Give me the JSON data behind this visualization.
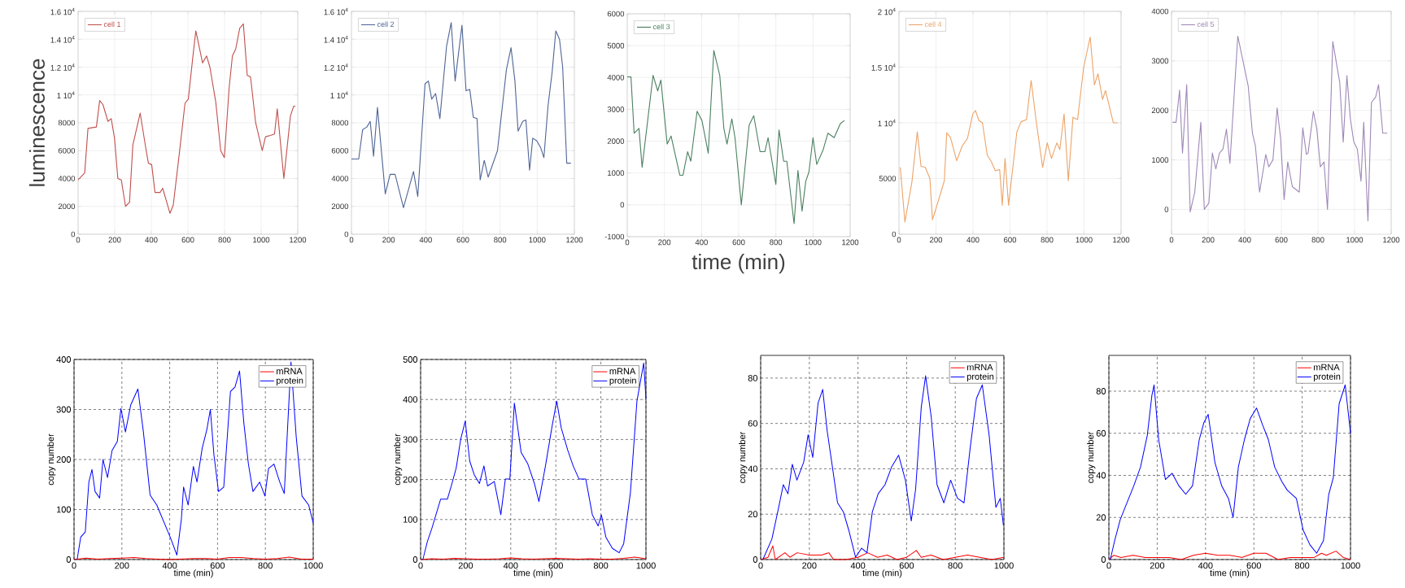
{
  "chart_data": [
    {
      "type": "line",
      "ylabel": "luminescence",
      "xlim": [
        0,
        1200
      ],
      "ylim": [
        0,
        16000
      ],
      "xticks": [
        0,
        200,
        400,
        600,
        800,
        1000,
        1200
      ],
      "yticks": [
        0,
        2000,
        4000,
        6000,
        8000,
        {
          "value": 10000,
          "label": "1 10$^{4}$"
        },
        {
          "value": 12000,
          "label": "1.2 10$^{4}$"
        },
        {
          "value": 14000,
          "label": "1.4 10$^{4}$"
        },
        {
          "value": 16000,
          "label": "1.6 10$^{4}$"
        }
      ],
      "grid": true,
      "legend": "top left",
      "series": [
        {
          "name": "cell 1",
          "color": "#c0504d",
          "x": [
            0,
            36,
            54,
            100,
            118,
            136,
            163,
            181,
            199,
            217,
            236,
            259,
            281,
            299,
            339,
            372,
            384,
            402,
            420,
            448,
            462,
            502,
            520,
            553,
            584,
            602,
            625,
            643,
            680,
            702,
            720,
            752,
            779,
            799,
            825,
            843,
            861,
            883,
            903,
            924,
            942,
            970,
            1006,
            1024,
            1051,
            1073,
            1088,
            1124,
            1160,
            1178,
            1187
          ],
          "values": [
            3900,
            4400,
            7600,
            7700,
            9600,
            9300,
            8100,
            8300,
            6900,
            4000,
            3900,
            2000,
            2300,
            6400,
            8700,
            6000,
            5100,
            5000,
            3000,
            3000,
            3300,
            1500,
            2100,
            5800,
            9400,
            9700,
            12500,
            14600,
            12300,
            12800,
            12000,
            9500,
            6000,
            5500,
            10500,
            12800,
            13300,
            14800,
            15100,
            11400,
            11300,
            8000,
            6000,
            7000,
            7100,
            7200,
            9000,
            4000,
            8500,
            9200,
            9200
          ]
        }
      ]
    },
    {
      "type": "line",
      "xlim": [
        0,
        1200
      ],
      "ylim": [
        0,
        16000
      ],
      "xticks": [
        0,
        200,
        400,
        600,
        800,
        1000,
        1200
      ],
      "yticks": [
        0,
        2000,
        4000,
        6000,
        8000,
        {
          "value": 10000,
          "label": "1 10$^{4}$"
        },
        {
          "value": 12000,
          "label": "1.2 10$^{4}$"
        },
        {
          "value": 14000,
          "label": "1.4 10$^{4}$"
        },
        {
          "value": 16000,
          "label": "1.6 10$^{4}$"
        }
      ],
      "grid": true,
      "legend": "top left",
      "series": [
        {
          "name": "cell 2",
          "color": "#4f6596",
          "x": [
            0,
            39,
            60,
            83,
            101,
            119,
            140,
            182,
            208,
            235,
            280,
            334,
            357,
            396,
            414,
            432,
            453,
            476,
            512,
            537,
            558,
            595,
            617,
            637,
            656,
            676,
            693,
            715,
            736,
            786,
            834,
            859,
            880,
            897,
            922,
            939,
            959,
            976,
            998,
            1019,
            1036,
            1058,
            1080,
            1100,
            1120,
            1137,
            1159,
            1181
          ],
          "values": [
            5400,
            5400,
            7500,
            7700,
            8100,
            5600,
            9100,
            2900,
            4300,
            4300,
            1900,
            4500,
            2700,
            10800,
            11000,
            9700,
            10100,
            8300,
            13500,
            15200,
            11000,
            15000,
            10300,
            10400,
            8400,
            8300,
            3900,
            5300,
            4100,
            6000,
            11800,
            13400,
            11000,
            7400,
            8100,
            8200,
            4600,
            6900,
            6700,
            6200,
            5500,
            9200,
            11600,
            14600,
            14000,
            12000,
            5100,
            5100
          ]
        }
      ]
    },
    {
      "type": "line",
      "xlabel": "time (min)",
      "xlim": [
        0,
        1200
      ],
      "ylim": [
        -1000,
        6000
      ],
      "xticks": [
        0,
        200,
        400,
        600,
        800,
        1000,
        1200
      ],
      "yticks": [
        -1000,
        0,
        1000,
        2000,
        3000,
        4000,
        5000,
        6000
      ],
      "grid": true,
      "legend": "top left",
      "series": [
        {
          "name": "cell 3",
          "color": "#4a8060",
          "x": [
            0,
            20,
            37,
            63,
            80,
            139,
            164,
            181,
            215,
            236,
            283,
            300,
            325,
            342,
            376,
            402,
            436,
            466,
            498,
            520,
            537,
            563,
            580,
            614,
            656,
            681,
            715,
            741,
            758,
            800,
            817,
            842,
            859,
            898,
            919,
            941,
            961,
            978,
            1000,
            1020,
            1054,
            1080,
            1114,
            1147,
            1169
          ],
          "values": [
            4020,
            4020,
            2250,
            2400,
            1180,
            4070,
            3580,
            3920,
            1910,
            2160,
            930,
            930,
            1670,
            1370,
            2940,
            2650,
            1620,
            4850,
            4070,
            2400,
            1910,
            2700,
            2110,
            0,
            2500,
            2800,
            1670,
            1670,
            2110,
            640,
            2350,
            1370,
            1370,
            -590,
            1080,
            -200,
            740,
            1030,
            2110,
            1270,
            1720,
            2250,
            2110,
            2550,
            2650
          ]
        }
      ]
    },
    {
      "type": "line",
      "xlim": [
        0,
        1200
      ],
      "ylim": [
        0,
        20000
      ],
      "xticks": [
        0,
        200,
        400,
        600,
        800,
        1000,
        1200
      ],
      "yticks": [
        0,
        5000,
        {
          "value": 10000,
          "label": "1 10$^{4}$"
        },
        {
          "value": 15000,
          "label": "1.5 10$^{4}$"
        },
        {
          "value": 20000,
          "label": "2 10$^{4}$"
        }
      ],
      "grid": true,
      "legend": "top left",
      "series": [
        {
          "name": "cell 4",
          "color": "#eda468",
          "x": [
            7,
            32,
            70,
            99,
            119,
            142,
            167,
            181,
            196,
            245,
            258,
            278,
            312,
            341,
            370,
            399,
            413,
            432,
            451,
            477,
            496,
            521,
            544,
            558,
            573,
            592,
            637,
            660,
            689,
            714,
            741,
            776,
            801,
            824,
            853,
            869,
            892,
            915,
            940,
            965,
            998,
            1033,
            1056,
            1075,
            1100,
            1116,
            1158,
            1181
          ],
          "values": [
            6000,
            1100,
            4700,
            9200,
            6100,
            6000,
            5000,
            1300,
            2100,
            4800,
            9100,
            8700,
            6600,
            7900,
            8600,
            10800,
            11100,
            10200,
            10000,
            7100,
            6600,
            5700,
            5800,
            2600,
            6800,
            2600,
            9200,
            10100,
            10300,
            13800,
            10200,
            6000,
            8200,
            6800,
            8200,
            7600,
            10800,
            4800,
            10500,
            10300,
            15000,
            17700,
            13400,
            14400,
            12100,
            12900,
            10000,
            10000
          ]
        }
      ]
    },
    {
      "type": "line",
      "xlim": [
        0,
        1200
      ],
      "ylim": [
        -500,
        4000
      ],
      "xticks": [
        0,
        200,
        400,
        600,
        800,
        1000,
        1200
      ],
      "yticks": [
        0,
        1000,
        2000,
        3000,
        4000
      ],
      "grid": true,
      "legend": "top left",
      "series": [
        {
          "name": "cell 5",
          "color": "#9f88b8",
          "x": [
            6,
            25,
            44,
            60,
            83,
            102,
            127,
            160,
            179,
            204,
            223,
            242,
            262,
            281,
            300,
            319,
            362,
            419,
            442,
            458,
            481,
            515,
            531,
            554,
            577,
            596,
            615,
            635,
            660,
            698,
            717,
            737,
            746,
            775,
            794,
            813,
            833,
            852,
            881,
            919,
            938,
            958,
            977,
            996,
            1015,
            1035,
            1050,
            1073,
            1092,
            1115,
            1131,
            1154,
            1179
          ],
          "values": [
            1760,
            1760,
            2410,
            1140,
            2520,
            -50,
            350,
            1760,
            0,
            130,
            1140,
            820,
            1140,
            1220,
            1620,
            930,
            3500,
            2490,
            1540,
            1290,
            350,
            1110,
            860,
            1000,
            2050,
            1430,
            200,
            960,
            460,
            350,
            1650,
            1110,
            1140,
            1980,
            1620,
            860,
            960,
            0,
            3390,
            2560,
            1360,
            2700,
            1830,
            1360,
            1220,
            570,
            1760,
            -230,
            2160,
            2270,
            2520,
            1540,
            1540
          ]
        }
      ]
    },
    {
      "type": "line",
      "xlabel": "time (min)",
      "ylabel": "copy number",
      "xlim": [
        0,
        1000
      ],
      "ylim": [
        0,
        400
      ],
      "xticks": [
        0,
        200,
        400,
        600,
        800,
        1000
      ],
      "yticks": [
        0,
        100,
        200,
        300,
        400
      ],
      "grid": true,
      "legend": "top right",
      "series": [
        {
          "name": "mRNA",
          "color": "#ff0000",
          "x": [
            0,
            50,
            100,
            150,
            200,
            250,
            300,
            350,
            400,
            450,
            500,
            550,
            600,
            650,
            700,
            750,
            800,
            850,
            900,
            950,
            1000
          ],
          "values": [
            0,
            3,
            1,
            2,
            3,
            4,
            2,
            1,
            0,
            1,
            2,
            2,
            1,
            4,
            4,
            2,
            1,
            2,
            5,
            1,
            1
          ]
        },
        {
          "name": "protein",
          "color": "#0000ff",
          "x": [
            13,
            28,
            47,
            62,
            75,
            88,
            107,
            121,
            140,
            159,
            181,
            196,
            215,
            237,
            267,
            290,
            318,
            346,
            402,
            430,
            449,
            458,
            477,
            499,
            514,
            536,
            555,
            570,
            585,
            604,
            626,
            654,
            673,
            692,
            710,
            729,
            748,
            776,
            798,
            813,
            836,
            860,
            879,
            888,
            907,
            929,
            953,
            981,
            1000
          ],
          "values": [
            0,
            45,
            55,
            155,
            180,
            136,
            123,
            200,
            164,
            218,
            236,
            302,
            255,
            309,
            341,
            255,
            129,
            109,
            45,
            9,
            82,
            145,
            109,
            186,
            155,
            223,
            259,
            300,
            209,
            136,
            145,
            336,
            345,
            377,
            273,
            191,
            136,
            155,
            127,
            182,
            191,
            155,
            132,
            218,
            395,
            245,
            127,
            109,
            73
          ]
        }
      ]
    },
    {
      "type": "line",
      "xlabel": "time (min)",
      "ylabel": "copy number",
      "xlim": [
        0,
        1000
      ],
      "ylim": [
        0,
        500
      ],
      "xticks": [
        0,
        200,
        400,
        600,
        800,
        1000
      ],
      "yticks": [
        0,
        100,
        200,
        300,
        400,
        500
      ],
      "grid": true,
      "legend": "top right",
      "series": [
        {
          "name": "mRNA",
          "color": "#ff0000",
          "x": [
            0,
            50,
            100,
            150,
            200,
            250,
            300,
            350,
            400,
            450,
            500,
            550,
            600,
            650,
            700,
            750,
            800,
            850,
            900,
            950,
            1000
          ],
          "values": [
            0,
            2,
            1,
            3,
            2,
            1,
            1,
            2,
            4,
            2,
            1,
            2,
            3,
            2,
            1,
            2,
            1,
            1,
            3,
            6,
            2
          ]
        },
        {
          "name": "protein",
          "color": "#0000ff",
          "x": [
            10,
            30,
            50,
            89,
            119,
            139,
            158,
            178,
            198,
            218,
            238,
            261,
            281,
            297,
            327,
            356,
            376,
            396,
            416,
            446,
            475,
            505,
            525,
            554,
            584,
            604,
            624,
            653,
            677,
            703,
            733,
            762,
            788,
            802,
            822,
            851,
            881,
            901,
            931,
            960,
            990,
            1000
          ],
          "values": [
            0,
            45,
            78,
            151,
            151,
            190,
            229,
            301,
            346,
            246,
            212,
            190,
            234,
            184,
            195,
            112,
            201,
            201,
            391,
            268,
            240,
            190,
            145,
            234,
            335,
            396,
            329,
            273,
            234,
            201,
            201,
            112,
            84,
            112,
            56,
            28,
            17,
            39,
            167,
            396,
            491,
            402
          ]
        }
      ]
    },
    {
      "type": "line",
      "xlabel": "time (min)",
      "ylabel": "copy number",
      "xlim": [
        0,
        1000
      ],
      "ylim": [
        0,
        90
      ],
      "xticks": [
        0,
        200,
        400,
        600,
        800,
        1000
      ],
      "yticks": [
        0,
        20,
        40,
        60,
        80
      ],
      "grid": true,
      "legend": "top right",
      "series": [
        {
          "name": "mRNA",
          "color": "#ff0000",
          "x": [
            0,
            30,
            50,
            60,
            100,
            120,
            150,
            200,
            250,
            280,
            300,
            350,
            400,
            440,
            480,
            520,
            560,
            600,
            640,
            660,
            700,
            750,
            800,
            850,
            900,
            950,
            1000
          ],
          "values": [
            0,
            1,
            6,
            0,
            3,
            1,
            3,
            2,
            2,
            3,
            0,
            0,
            1,
            3,
            1,
            2,
            0,
            1,
            4,
            1,
            2,
            0,
            1,
            2,
            1,
            0,
            1
          ]
        },
        {
          "name": "protein",
          "color": "#0000ff",
          "x": [
            9,
            46,
            74,
            93,
            112,
            130,
            149,
            177,
            195,
            214,
            236,
            255,
            273,
            292,
            316,
            340,
            362,
            390,
            415,
            437,
            459,
            483,
            511,
            539,
            567,
            595,
            619,
            637,
            660,
            678,
            701,
            725,
            753,
            781,
            809,
            836,
            861,
            887,
            911,
            939,
            967,
            985,
            998
          ],
          "values": [
            0,
            9,
            23,
            33,
            29,
            42,
            35,
            43,
            55,
            45,
            69,
            75,
            57,
            43,
            25,
            21,
            13,
            1,
            5,
            3,
            21,
            29,
            33,
            41,
            46,
            35,
            17,
            31,
            67,
            81,
            63,
            33,
            25,
            35,
            27,
            25,
            49,
            71,
            77,
            55,
            23,
            27,
            15
          ]
        }
      ]
    },
    {
      "type": "line",
      "xlabel": "time (min)",
      "ylabel": "copy number",
      "xlim": [
        0,
        1000
      ],
      "ylim": [
        0,
        97
      ],
      "xticks": [
        0,
        200,
        400,
        600,
        800,
        1000
      ],
      "yticks": [
        0,
        20,
        40,
        60,
        80
      ],
      "grid": true,
      "legend": "top right",
      "series": [
        {
          "name": "mRNA",
          "color": "#ff0000",
          "x": [
            0,
            20,
            50,
            100,
            150,
            200,
            250,
            300,
            350,
            400,
            450,
            500,
            550,
            600,
            650,
            700,
            750,
            800,
            850,
            880,
            900,
            940,
            970,
            1000
          ],
          "values": [
            0,
            2,
            1,
            2,
            1,
            1,
            1,
            0,
            2,
            3,
            2,
            2,
            1,
            3,
            3,
            0,
            1,
            1,
            1,
            3,
            2,
            4,
            1,
            0
          ]
        },
        {
          "name": "protein",
          "color": "#0000ff",
          "x": [
            6,
            24,
            47,
            75,
            103,
            131,
            159,
            178,
            187,
            206,
            234,
            262,
            290,
            318,
            346,
            374,
            393,
            411,
            439,
            467,
            495,
            514,
            536,
            561,
            585,
            611,
            636,
            660,
            686,
            716,
            738,
            776,
            804,
            832,
            860,
            888,
            910,
            929,
            953,
            978,
            1000
          ],
          "values": [
            0,
            9,
            19,
            27,
            35,
            44,
            59,
            78,
            83,
            57,
            38,
            41,
            35,
            31,
            35,
            57,
            65,
            69,
            46,
            35,
            29,
            20,
            44,
            57,
            67,
            72,
            64,
            57,
            44,
            37,
            33,
            29,
            14,
            7,
            3,
            9,
            31,
            39,
            74,
            83,
            60
          ]
        }
      ]
    }
  ]
}
